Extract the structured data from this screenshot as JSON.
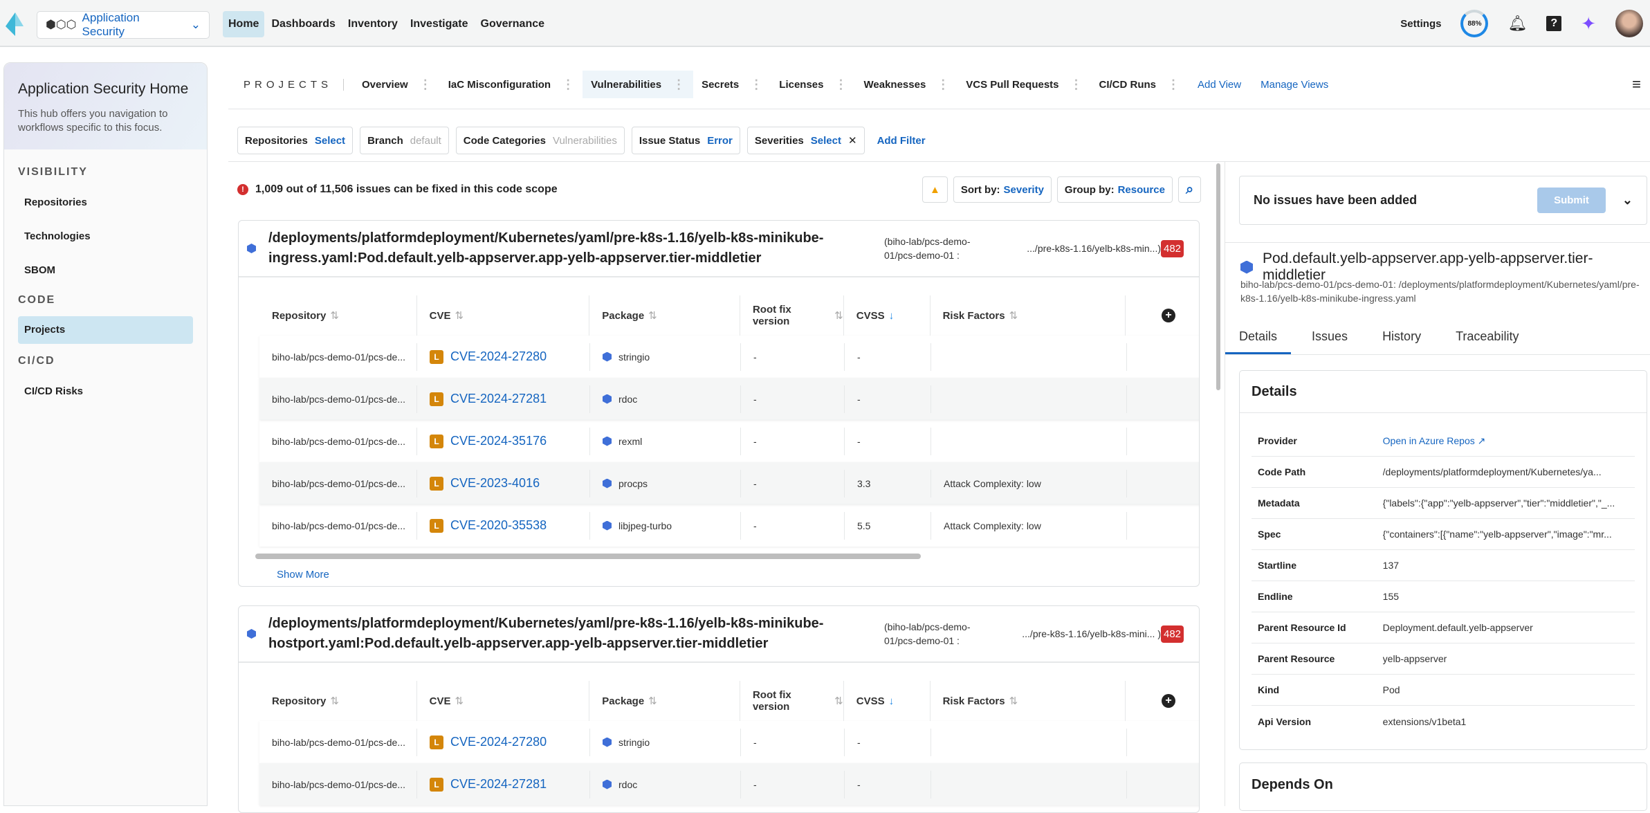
{
  "topbar": {
    "app_selector": "Application Security",
    "nav": [
      "Home",
      "Dashboards",
      "Inventory",
      "Investigate",
      "Governance"
    ],
    "active_nav": "Home",
    "settings": "Settings",
    "progress_label": "88%",
    "progress_value": 88
  },
  "sidebar": {
    "title": "Application Security Home",
    "description": "This hub offers you navigation to workflows specific to this focus.",
    "sections": [
      {
        "label": "VISIBILITY",
        "items": [
          "Repositories",
          "Technologies",
          "SBOM"
        ]
      },
      {
        "label": "CODE",
        "items": [
          "Projects"
        ]
      },
      {
        "label": "CI/CD",
        "items": [
          "CI/CD Risks"
        ]
      }
    ],
    "active_item": "Projects"
  },
  "tabs": {
    "section": "PROJECTS",
    "items": [
      "Overview",
      "IaC Misconfiguration",
      "Vulnerabilities",
      "Secrets",
      "Licenses",
      "Weaknesses",
      "VCS Pull Requests",
      "CI/CD Runs"
    ],
    "active": "Vulnerabilities",
    "add_view": "Add View",
    "manage_views": "Manage Views"
  },
  "filters": [
    {
      "label": "Repositories",
      "value": "Select"
    },
    {
      "label": "Branch",
      "value": "default"
    },
    {
      "label": "Code Categories",
      "value": "Vulnerabilities"
    },
    {
      "label": "Issue Status",
      "value": "Error"
    },
    {
      "label": "Severities",
      "value": "Select"
    }
  ],
  "add_filter": "Add Filter",
  "summary": "1,009 out of 11,506 issues can be fixed in this code scope",
  "sort": {
    "label": "Sort by:",
    "value": "Severity"
  },
  "group": {
    "label": "Group by:",
    "value": "Resource"
  },
  "columns": [
    "Repository",
    "CVE",
    "Package",
    "Root fix version",
    "CVSS",
    "Risk Factors"
  ],
  "show_more": "Show More",
  "cards": [
    {
      "title": "/deployments/platformdeployment/Kubernetes/yaml/pre-k8s-1.16/yelb-k8s-minikube-ingress.yaml:Pod.default.yelb-appserver.app-yelb-appserver.tier-middletier",
      "repo": "(biho-lab/pcs-demo-01/pcs-demo-01 :",
      "path": ".../pre-k8s-1.16/yelb-k8s-min...)",
      "count": "482",
      "rows": [
        {
          "repository": "biho-lab/pcs-demo-01/pcs-de...",
          "severity": "L",
          "cve": "CVE-2024-27280",
          "package": "stringio",
          "root_fix": "-",
          "cvss": "-",
          "risk": ""
        },
        {
          "repository": "biho-lab/pcs-demo-01/pcs-de...",
          "severity": "L",
          "cve": "CVE-2024-27281",
          "package": "rdoc",
          "root_fix": "-",
          "cvss": "-",
          "risk": ""
        },
        {
          "repository": "biho-lab/pcs-demo-01/pcs-de...",
          "severity": "L",
          "cve": "CVE-2024-35176",
          "package": "rexml",
          "root_fix": "-",
          "cvss": "-",
          "risk": ""
        },
        {
          "repository": "biho-lab/pcs-demo-01/pcs-de...",
          "severity": "L",
          "cve": "CVE-2023-4016",
          "package": "procps",
          "root_fix": "-",
          "cvss": "3.3",
          "risk": "Attack Complexity: low"
        },
        {
          "repository": "biho-lab/pcs-demo-01/pcs-de...",
          "severity": "L",
          "cve": "CVE-2020-35538",
          "package": "libjpeg-turbo",
          "root_fix": "-",
          "cvss": "5.5",
          "risk": "Attack Complexity: low"
        }
      ]
    },
    {
      "title": "/deployments/platformdeployment/Kubernetes/yaml/pre-k8s-1.16/yelb-k8s-minikube-hostport.yaml:Pod.default.yelb-appserver.app-yelb-appserver.tier-middletier",
      "repo": "(biho-lab/pcs-demo-01/pcs-demo-01 :",
      "path": ".../pre-k8s-1.16/yelb-k8s-mini... )",
      "count": "482",
      "rows": [
        {
          "repository": "biho-lab/pcs-demo-01/pcs-de...",
          "severity": "L",
          "cve": "CVE-2024-27280",
          "package": "stringio",
          "root_fix": "-",
          "cvss": "-",
          "risk": ""
        },
        {
          "repository": "biho-lab/pcs-demo-01/pcs-de...",
          "severity": "L",
          "cve": "CVE-2024-27281",
          "package": "rdoc",
          "root_fix": "-",
          "cvss": "-",
          "risk": ""
        }
      ]
    }
  ],
  "right": {
    "no_issues": "No issues have been added",
    "submit": "Submit",
    "resource_title": "Pod.default.yelb-appserver.app-yelb-appserver.tier-middletier",
    "resource_path": "biho-lab/pcs-demo-01/pcs-demo-01: /deployments/platformdeployment/Kubernetes/yaml/pre-k8s-1.16/yelb-k8s-minikube-ingress.yaml",
    "tabs": [
      "Details",
      "Issues",
      "History",
      "Traceability"
    ],
    "active_tab": "Details",
    "details_title": "Details",
    "details": [
      {
        "key": "Provider",
        "value": "Open in Azure Repos"
      },
      {
        "key": "Code Path",
        "value": "/deployments/platformdeployment/Kubernetes/ya..."
      },
      {
        "key": "Metadata",
        "value": "{\"labels\":{\"app\":\"yelb-appserver\",\"tier\":\"middletier\",\"_..."
      },
      {
        "key": "Spec",
        "value": "{\"containers\":[{\"name\":\"yelb-appserver\",\"image\":\"mr..."
      },
      {
        "key": "Startline",
        "value": "137"
      },
      {
        "key": "Endline",
        "value": "155"
      },
      {
        "key": "Parent Resource Id",
        "value": "Deployment.default.yelb-appserver"
      },
      {
        "key": "Parent Resource",
        "value": "yelb-appserver"
      },
      {
        "key": "Kind",
        "value": "Pod"
      },
      {
        "key": "Api Version",
        "value": "extensions/v1beta1"
      }
    ],
    "depends_on": "Depends On"
  },
  "colors": {
    "accent": "#1565c0",
    "severity_low": "#d4860a",
    "error": "#d32f2f",
    "active_bg": "#cde6f2"
  }
}
